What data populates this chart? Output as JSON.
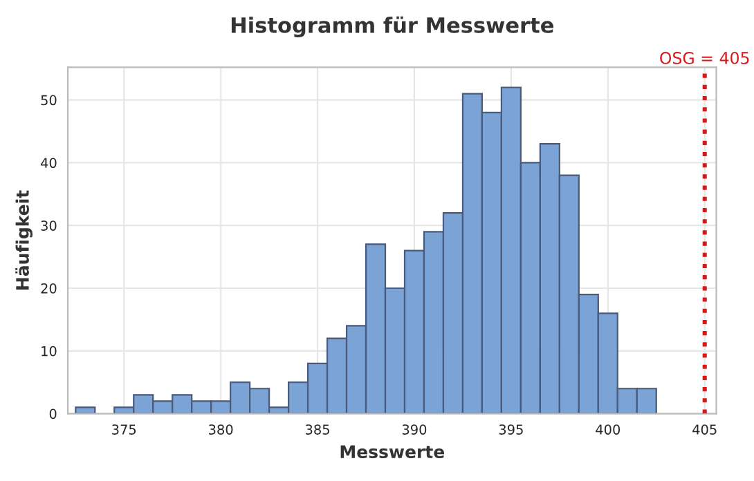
{
  "chart_data": {
    "type": "histogram",
    "title": "Histogramm für Messwerte",
    "xlabel": "Messwerte",
    "ylabel": "Häufigkeit",
    "bins": [
      372.5,
      373.5,
      374.5,
      375.5,
      376.5,
      377.5,
      378.5,
      379.5,
      380.5,
      381.5,
      382.5,
      383.5,
      384.5,
      385.5,
      386.5,
      387.5,
      388.5,
      389.5,
      390.5,
      391.5,
      392.5,
      393.5,
      394.5,
      395.5,
      396.5,
      397.5,
      398.5,
      399.5,
      400.5,
      401.5,
      402.5
    ],
    "values": [
      1,
      0,
      1,
      3,
      2,
      3,
      2,
      2,
      5,
      4,
      1,
      5,
      8,
      12,
      14,
      27,
      20,
      26,
      29,
      32,
      51,
      48,
      52,
      40,
      43,
      38,
      19,
      16,
      4,
      4
    ],
    "color": "#7ba3d6",
    "xlim": [
      372.1,
      405.6
    ],
    "xticks": [
      375,
      380,
      385,
      390,
      395,
      400,
      405
    ],
    "ylim": [
      0,
      55.2
    ],
    "yticks": [
      0,
      10,
      20,
      30,
      40,
      50
    ],
    "grid": true,
    "ref_lines": [
      {
        "axis": "x",
        "value": 405,
        "label": "OSG = 405",
        "color": "#d7191c",
        "line_style": "dotted"
      }
    ]
  }
}
